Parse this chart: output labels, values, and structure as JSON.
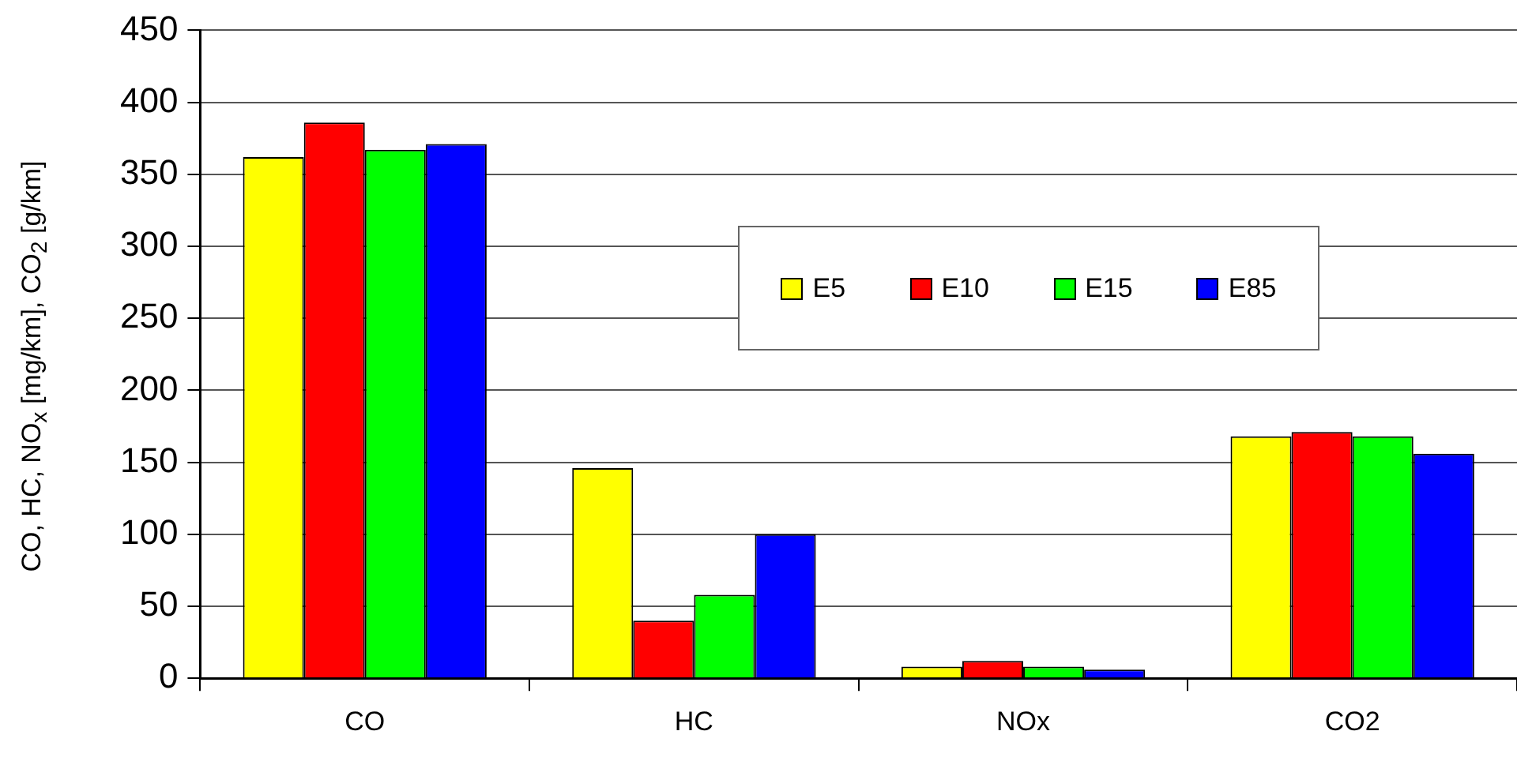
{
  "chart_data": {
    "type": "bar",
    "ylabel": "CO, HC, NO$_{x}$ [mg/km], CO$_{2}$ [g/km]",
    "categories": [
      "CO",
      "HC",
      "NOx",
      "CO2"
    ],
    "series": [
      {
        "name": "E5",
        "color": "#ffff00",
        "values": [
          362,
          146,
          8,
          168
        ]
      },
      {
        "name": "E10",
        "color": "#ff0000",
        "values": [
          386,
          40,
          12,
          171
        ]
      },
      {
        "name": "E15",
        "color": "#00ff00",
        "values": [
          367,
          58,
          8,
          168
        ]
      },
      {
        "name": "E85",
        "color": "#0000ff",
        "values": [
          371,
          100,
          6,
          156
        ]
      }
    ],
    "ylim": [
      0,
      450
    ],
    "yticks": [
      0,
      50,
      100,
      150,
      200,
      250,
      300,
      350,
      400,
      450
    ],
    "grid": "y",
    "legend": "top right"
  }
}
